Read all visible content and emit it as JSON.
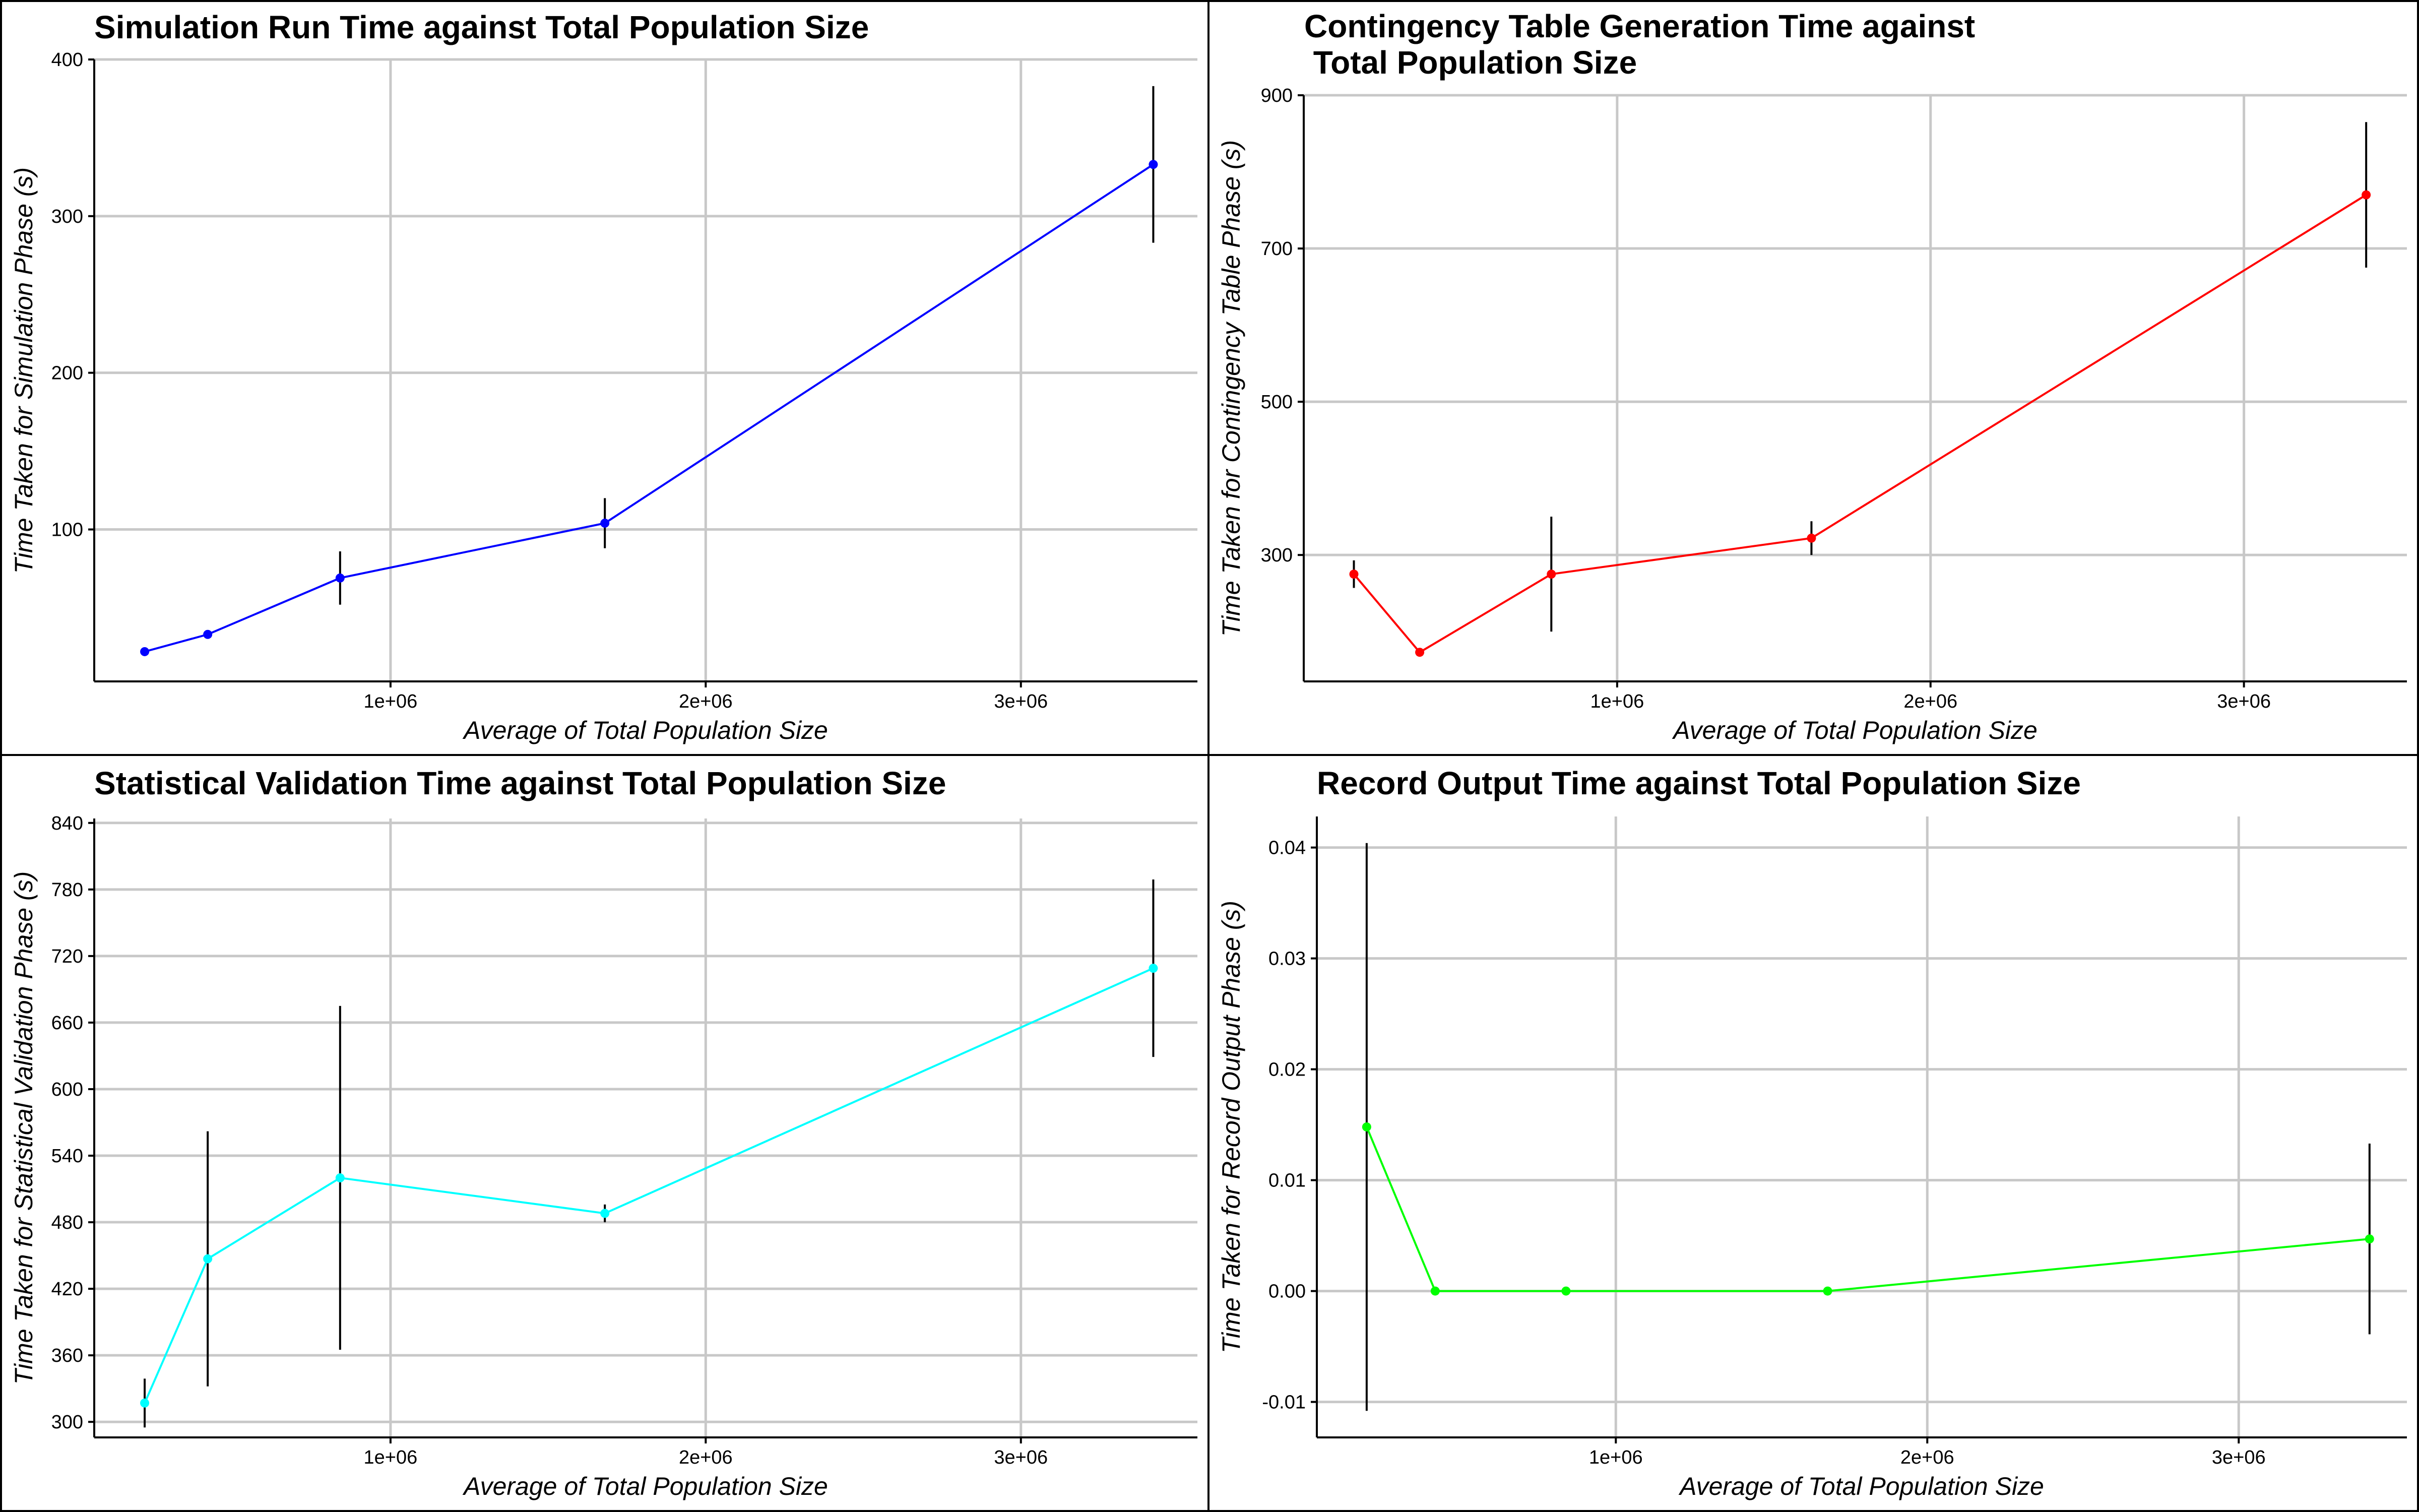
{
  "chart_data": [
    {
      "type": "line",
      "title_lines": [
        "Simulation Run Time against Total Population Size"
      ],
      "xlabel": "Average of Total Population Size",
      "ylabel": "Time Taken for Simulation Phase (s)",
      "xlim": [
        60000,
        3560000
      ],
      "ylim": [
        3,
        400
      ],
      "xticks": [
        1000000,
        2000000,
        3000000
      ],
      "xtick_labels": [
        "1e+06",
        "2e+06",
        "3e+06"
      ],
      "yticks": [
        100,
        200,
        300,
        400
      ],
      "ytick_labels": [
        "100",
        "200",
        "300",
        "400"
      ],
      "grid": true,
      "line_color": "#0000ff",
      "errorbar_color": "#000000",
      "series": [
        {
          "x": [
            220000,
            420000,
            840000,
            1680000,
            3420000
          ],
          "y": [
            22,
            33,
            69,
            104,
            333
          ],
          "err": [
            1,
            1,
            17,
            16,
            50
          ]
        }
      ]
    },
    {
      "type": "line",
      "title_lines": [
        "Contingency Table Generation Time against",
        " Total Population Size"
      ],
      "xlabel": "Average of Total Population Size",
      "ylabel": "Time Taken for Contingency Table Phase (s)",
      "xlim": [
        0,
        3520000
      ],
      "ylim": [
        135,
        900
      ],
      "xticks": [
        1000000,
        2000000,
        3000000
      ],
      "xtick_labels": [
        "1e+06",
        "2e+06",
        "3e+06"
      ],
      "yticks": [
        300,
        500,
        700,
        900
      ],
      "ytick_labels": [
        "300",
        "500",
        "700",
        "900"
      ],
      "grid": true,
      "line_color": "#ff0000",
      "errorbar_color": "#000000",
      "series": [
        {
          "x": [
            160000,
            370000,
            790000,
            1620000,
            3390000
          ],
          "y": [
            275,
            173,
            275,
            322,
            770
          ],
          "err": [
            18,
            1,
            75,
            22,
            95
          ]
        }
      ]
    },
    {
      "type": "line",
      "title_lines": [
        "Statistical Validation Time against Total Population Size"
      ],
      "xlabel": "Average of Total Population Size",
      "ylabel": "Time Taken for Statistical Validation Phase (s)",
      "xlim": [
        60000,
        3560000
      ],
      "ylim": [
        286,
        844
      ],
      "xticks": [
        1000000,
        2000000,
        3000000
      ],
      "xtick_labels": [
        "1e+06",
        "2e+06",
        "3e+06"
      ],
      "yticks": [
        300,
        360,
        420,
        480,
        540,
        600,
        660,
        720,
        780,
        840
      ],
      "ytick_labels": [
        "300",
        "360",
        "420",
        "480",
        "540",
        "600",
        "660",
        "720",
        "780",
        "840"
      ],
      "grid": true,
      "line_color": "#00ffff",
      "errorbar_color": "#000000",
      "series": [
        {
          "x": [
            220000,
            420000,
            840000,
            1680000,
            3420000
          ],
          "y": [
            317,
            447,
            520,
            488,
            709
          ],
          "err": [
            22,
            115,
            155,
            8,
            80
          ]
        }
      ]
    },
    {
      "type": "line",
      "title_lines": [
        "Record Output Time against Total Population Size"
      ],
      "xlabel": "Average of Total Population Size",
      "ylabel": "Time Taken for Record Output Phase (s)",
      "xlim": [
        40000,
        3540000
      ],
      "ylim": [
        -0.0132,
        0.0428
      ],
      "xticks": [
        1000000,
        2000000,
        3000000
      ],
      "xtick_labels": [
        "1e+06",
        "2e+06",
        "3e+06"
      ],
      "yticks": [
        -0.01,
        0.0,
        0.01,
        0.02,
        0.03,
        0.04
      ],
      "ytick_labels": [
        "-0.01",
        "0.00",
        "0.01",
        "0.02",
        "0.03",
        "0.04"
      ],
      "grid": true,
      "line_color": "#00ff00",
      "errorbar_color": "#000000",
      "series": [
        {
          "x": [
            200000,
            420000,
            840000,
            1680000,
            3420000
          ],
          "y": [
            0.0148,
            0.0,
            0.0,
            0.0,
            0.0047
          ],
          "err": [
            0.0256,
            0.0,
            0.0,
            0.0,
            0.0086
          ]
        }
      ]
    }
  ]
}
